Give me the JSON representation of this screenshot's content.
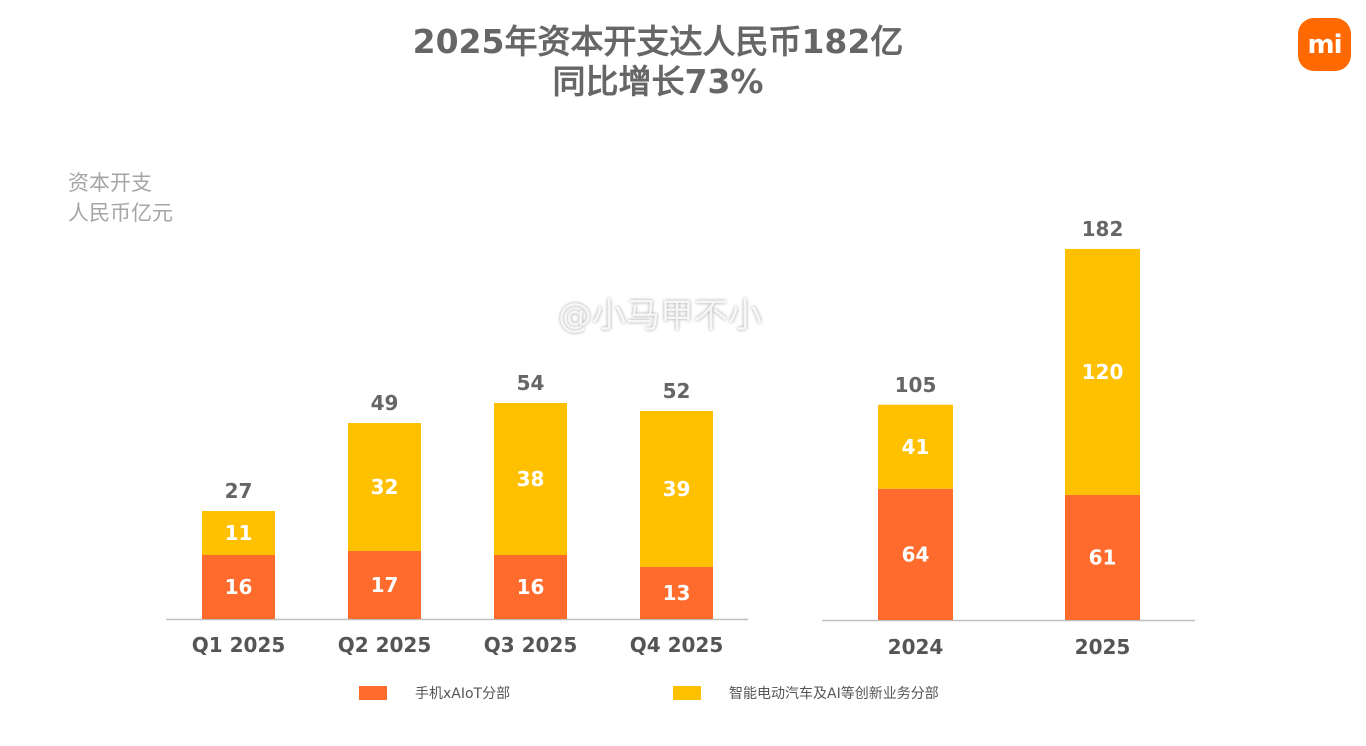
{
  "title_line1": "2025年资本开支达人民币182亿",
  "title_line2": "同比增长73%",
  "watermark": "@小马甲不小",
  "logo": "mi",
  "colors": {
    "phone": "#FF6B2C",
    "ev": "#FFC000",
    "text": "#666666"
  },
  "chart_data": [
    {
      "type": "bar",
      "stacked": true,
      "ylabel": [
        "资本开支",
        "人民币亿元"
      ],
      "categories": [
        "Q1 2025",
        "Q2 2025",
        "Q3 2025",
        "Q4 2025"
      ],
      "series": [
        {
          "name": "手机xAIoT分部",
          "values": [
            16,
            17,
            16,
            13
          ]
        },
        {
          "name": "智能电动汽车及AI等创新业务分部",
          "values": [
            11,
            32,
            38,
            39
          ]
        }
      ],
      "totals": [
        27,
        49,
        54,
        52
      ],
      "grid": false,
      "legend": "bottom"
    },
    {
      "type": "bar",
      "stacked": true,
      "categories": [
        "2024",
        "2025"
      ],
      "series": [
        {
          "name": "手机xAIoT分部",
          "values": [
            64,
            61
          ]
        },
        {
          "name": "智能电动汽车及AI等创新业务分部",
          "values": [
            41,
            120
          ]
        }
      ],
      "totals": [
        105,
        182
      ],
      "grid": false,
      "legend": "bottom"
    }
  ]
}
